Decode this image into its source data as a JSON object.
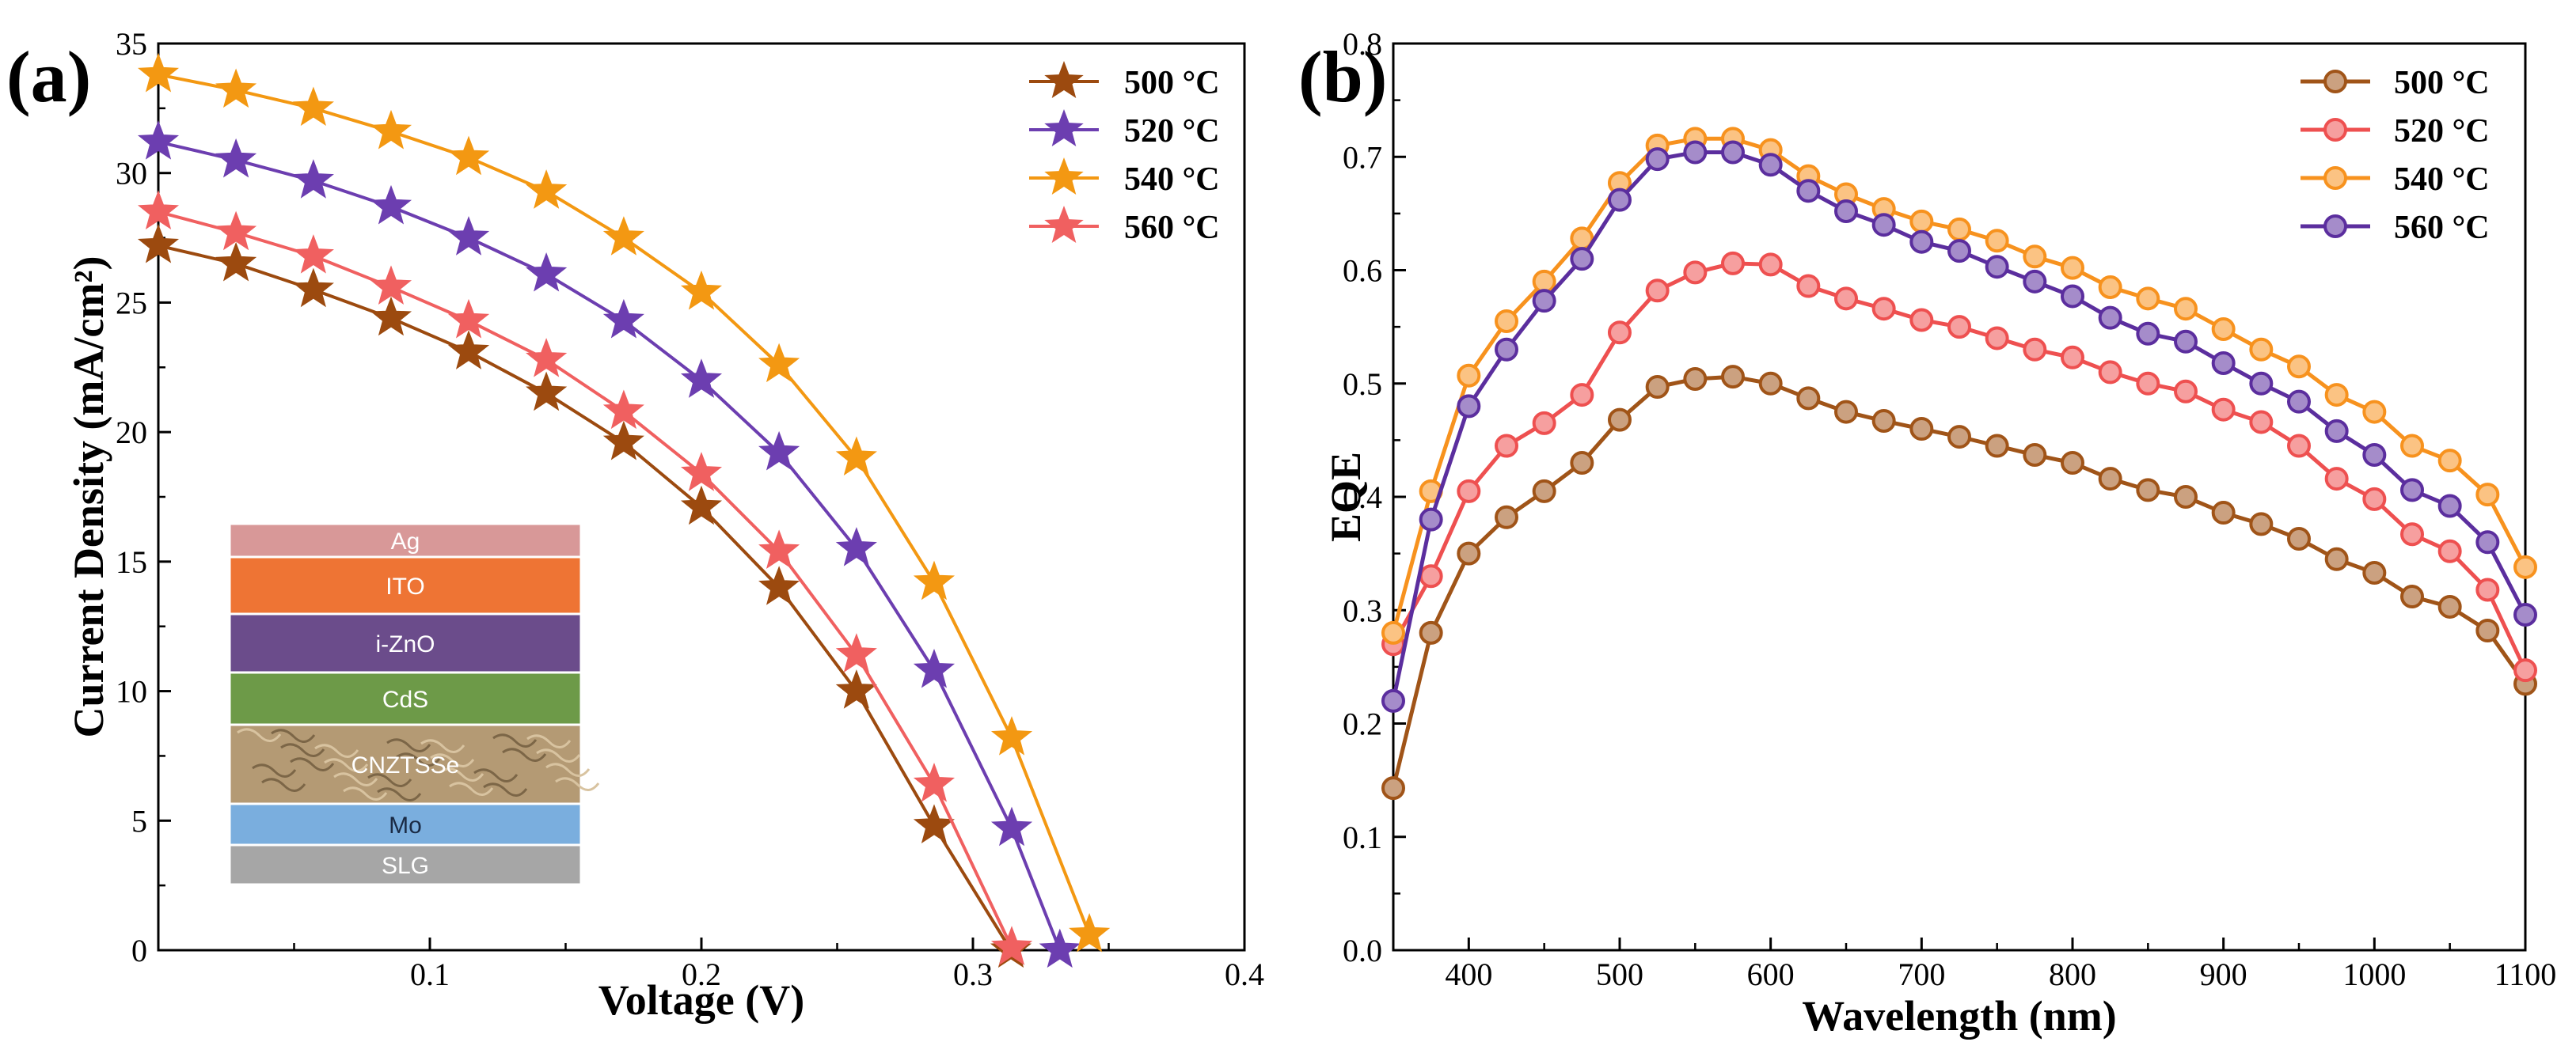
{
  "panels": {
    "a": {
      "label": "(a)"
    },
    "b": {
      "label": "(b)"
    }
  },
  "colors": {
    "500": "#9c4a0f",
    "520": "#6c3eb0",
    "540": "#f39812",
    "560": "#f06060",
    "b500": "#a05418",
    "b520": "#ee5050",
    "b540": "#f7921e",
    "b560": "#5b2e9e"
  },
  "inset_layers": [
    {
      "name": "Ag",
      "color": "#d89898",
      "text_color": "#ffffff"
    },
    {
      "name": "ITO",
      "color": "#ee7434",
      "text_color": "#ffffff"
    },
    {
      "name": "i-ZnO",
      "color": "#6b4c8b",
      "text_color": "#ffffff"
    },
    {
      "name": "CdS",
      "color": "#6d9a48",
      "text_color": "#ffffff"
    },
    {
      "name": "CNZTSSe",
      "color": "#b49a74",
      "text_color": "#ffffff"
    },
    {
      "name": "Mo",
      "color": "#7aaede",
      "text_color": "#1a2a44"
    },
    {
      "name": "SLG",
      "color": "#a6a6a6",
      "text_color": "#ffffff"
    }
  ],
  "chart_data": [
    {
      "type": "line",
      "panel": "a",
      "title": "",
      "xlabel": "Voltage (V)",
      "ylabel": "Current Density (mA/cm²)",
      "xlim": [
        0.0,
        0.4
      ],
      "ylim": [
        0,
        35
      ],
      "xticks": [
        0.1,
        0.2,
        0.3,
        0.4
      ],
      "xtick_labels": [
        "0.1",
        "0.2",
        "0.3",
        "0.4"
      ],
      "yticks": [
        0,
        5,
        10,
        15,
        20,
        25,
        30,
        35
      ],
      "ytick_labels": [
        "0",
        "5",
        "10",
        "15",
        "20",
        "25",
        "30",
        "35"
      ],
      "marker": "star",
      "legend_position": "top-right",
      "series": [
        {
          "name": "500 °C",
          "color_key": "500",
          "x": [
            0.0,
            0.0286,
            0.0571,
            0.0857,
            0.1143,
            0.1429,
            0.1714,
            0.2,
            0.2286,
            0.2571,
            0.2857,
            0.314
          ],
          "y": [
            27.2,
            26.5,
            25.5,
            24.4,
            23.1,
            21.5,
            19.6,
            17.1,
            14.0,
            10.0,
            4.8,
            0.0
          ]
        },
        {
          "name": "520 °C",
          "color_key": "520",
          "x": [
            0.0,
            0.0286,
            0.0571,
            0.0857,
            0.1143,
            0.1429,
            0.1714,
            0.2,
            0.2286,
            0.2571,
            0.2857,
            0.3143,
            0.332
          ],
          "y": [
            31.2,
            30.5,
            29.7,
            28.7,
            27.5,
            26.1,
            24.3,
            22.0,
            19.2,
            15.5,
            10.8,
            4.7,
            0.0
          ]
        },
        {
          "name": "540 °C",
          "color_key": "540",
          "x": [
            0.0,
            0.0286,
            0.0571,
            0.0857,
            0.1143,
            0.1429,
            0.1714,
            0.2,
            0.2286,
            0.2571,
            0.2857,
            0.3143,
            0.3429
          ],
          "y": [
            33.8,
            33.2,
            32.5,
            31.6,
            30.6,
            29.3,
            27.5,
            25.4,
            22.6,
            19.0,
            14.2,
            8.2,
            0.6
          ]
        },
        {
          "name": "560 °C",
          "color_key": "560",
          "x": [
            0.0,
            0.0286,
            0.0571,
            0.0857,
            0.1143,
            0.1429,
            0.1714,
            0.2,
            0.2286,
            0.2571,
            0.2857,
            0.3143
          ],
          "y": [
            28.5,
            27.7,
            26.8,
            25.6,
            24.3,
            22.8,
            20.8,
            18.4,
            15.4,
            11.4,
            6.4,
            0.1
          ]
        }
      ]
    },
    {
      "type": "line",
      "panel": "b",
      "title": "",
      "xlabel": "Wavelength (nm)",
      "ylabel": "EQE",
      "xlim": [
        350,
        1100
      ],
      "ylim": [
        0.0,
        0.8
      ],
      "xticks": [
        400,
        500,
        600,
        700,
        800,
        900,
        1000,
        1100
      ],
      "xtick_labels": [
        "400",
        "500",
        "600",
        "700",
        "800",
        "900",
        "1000",
        "1100"
      ],
      "yticks": [
        0.0,
        0.1,
        0.2,
        0.3,
        0.4,
        0.5,
        0.6,
        0.7,
        0.8
      ],
      "ytick_labels": [
        "0.0",
        "0.1",
        "0.2",
        "0.3",
        "0.4",
        "0.5",
        "0.6",
        "0.7",
        "0.8"
      ],
      "marker": "circle",
      "legend_position": "top-right",
      "x": [
        350,
        375,
        400,
        425,
        450,
        475,
        500,
        525,
        550,
        575,
        600,
        625,
        650,
        675,
        700,
        725,
        750,
        775,
        800,
        825,
        850,
        875,
        900,
        925,
        950,
        975,
        1000,
        1025,
        1050,
        1075,
        1100
      ],
      "series": [
        {
          "name": "500 °C",
          "color_key": "b500",
          "values": [
            0.143,
            0.28,
            0.35,
            0.382,
            0.405,
            0.43,
            0.468,
            0.497,
            0.504,
            0.506,
            0.5,
            0.487,
            0.475,
            0.467,
            0.46,
            0.453,
            0.445,
            0.437,
            0.43,
            0.416,
            0.406,
            0.4,
            0.386,
            0.376,
            0.363,
            0.345,
            0.333,
            0.312,
            0.303,
            0.282,
            0.235
          ]
        },
        {
          "name": "520 °C",
          "color_key": "b520",
          "values": [
            0.27,
            0.33,
            0.405,
            0.445,
            0.465,
            0.49,
            0.545,
            0.582,
            0.598,
            0.606,
            0.605,
            0.586,
            0.575,
            0.566,
            0.556,
            0.55,
            0.54,
            0.53,
            0.523,
            0.51,
            0.5,
            0.493,
            0.477,
            0.466,
            0.445,
            0.416,
            0.398,
            0.367,
            0.352,
            0.318,
            0.247
          ]
        },
        {
          "name": "540 °C",
          "color_key": "b540",
          "values": [
            0.28,
            0.405,
            0.507,
            0.555,
            0.59,
            0.628,
            0.677,
            0.71,
            0.716,
            0.716,
            0.706,
            0.683,
            0.667,
            0.654,
            0.643,
            0.636,
            0.626,
            0.612,
            0.602,
            0.585,
            0.575,
            0.566,
            0.548,
            0.53,
            0.515,
            0.49,
            0.475,
            0.445,
            0.432,
            0.402,
            0.338
          ]
        },
        {
          "name": "560 °C",
          "color_key": "b560",
          "values": [
            0.22,
            0.38,
            0.48,
            0.53,
            0.573,
            0.61,
            0.662,
            0.698,
            0.704,
            0.704,
            0.693,
            0.67,
            0.652,
            0.64,
            0.625,
            0.617,
            0.603,
            0.59,
            0.577,
            0.558,
            0.544,
            0.537,
            0.518,
            0.5,
            0.484,
            0.458,
            0.437,
            0.406,
            0.392,
            0.36,
            0.296
          ]
        }
      ]
    }
  ]
}
